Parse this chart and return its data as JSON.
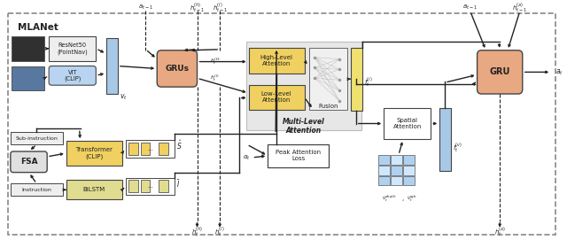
{
  "colors": {
    "gru_orange": "#E8A882",
    "blue_box": "#A8C8E8",
    "yellow_box": "#F0D060",
    "light_yellow_box": "#E8E098",
    "gray_box": "#E0E0E0",
    "light_gray": "#F0F0F0",
    "mla_bg": "#DCDCDC",
    "white": "#FFFFFF",
    "dark": "#222222"
  },
  "labels": {
    "mlanet": "MLANet",
    "resnet": "ResNet50\n(PointNav)",
    "vit": "ViT\n(CLIP)",
    "grus": "GRUs",
    "gru": "GRU",
    "transformer": "Transformer\n(CLIP)",
    "bilstm": "BiLSTM",
    "fsa": "FSA",
    "sub_instruction": "Sub-instruction",
    "instruction": "Instruction",
    "high_attention": "High-Level\nAttention",
    "low_attention": "Low-Level\nAttention",
    "fusion": "Fusion",
    "mla": "Multi-Level\nAttention",
    "spatial": "Spatial\nAttention",
    "peak": "Peak Attention\nLoss",
    "v_t": "$v_t$",
    "s_hat": "$\\hat{S}$",
    "i_bar": "$\\bar{I}$",
    "f_ti": "$f_t^{(i)}$",
    "f_tv": "$f_t^{(v)}$",
    "a_t": "$a_t$",
    "h_t_h": "$h_t^{(h)}$",
    "h_t_l": "$h_t^{(l)}$",
    "h_tm1_h": "$h_{t-1}^{(h)}$",
    "h_tm1_l": "$h_{t-1}^{(l)}$",
    "h_tm1_a": "$h_{t-1}^{(a)}$",
    "h_t_h_bot": "$h_t^{(h)}$",
    "h_t_l_bot": "$h_t^{(l)}$",
    "h_t_a": "$h_t^{(a)}$",
    "alpha_t": "$\\alpha_t$",
    "v_depth": "$\\tilde{v}_t^{depth}$",
    "v_rgb": "$\\tilde{v}_t^{rgb}$",
    "a_t1_left": "$a_{t-1}$",
    "a_t1_right": "$a_{t-1}$"
  }
}
